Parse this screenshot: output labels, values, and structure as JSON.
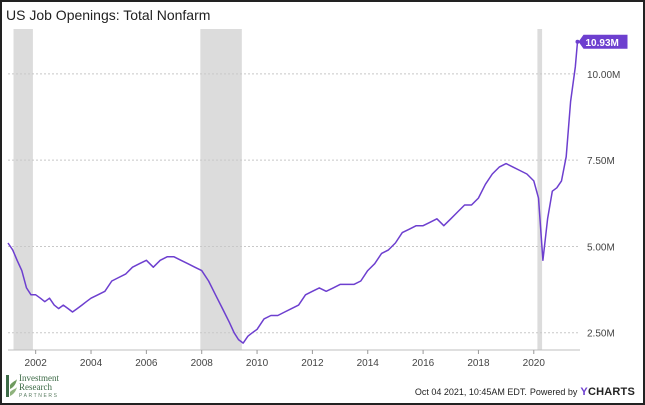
{
  "chart_data": {
    "type": "line",
    "title": "US Job Openings: Total Nonfarm",
    "xlabel": "",
    "ylabel": "",
    "x_range": [
      2001.0,
      2021.67
    ],
    "ylim": [
      2.0,
      11.3
    ],
    "x_ticks": [
      2002,
      2004,
      2006,
      2008,
      2010,
      2012,
      2014,
      2016,
      2018,
      2020
    ],
    "x_tick_labels": [
      "2002",
      "2004",
      "2006",
      "2008",
      "2010",
      "2012",
      "2014",
      "2016",
      "2018",
      "2020"
    ],
    "y_ticks": [
      2.5,
      5.0,
      7.5,
      10.0
    ],
    "y_tick_labels": [
      "2.50M",
      "5.00M",
      "7.50M",
      "10.00M"
    ],
    "grid": "horizontal dotted",
    "shaded_periods": [
      [
        2001.2,
        2001.9
      ],
      [
        2007.95,
        2009.45
      ],
      [
        2020.13,
        2020.3
      ]
    ],
    "end_label": "10.93M",
    "colors": {
      "line": "#6d3fcf",
      "recession": "#dcdcdc",
      "grid": "#c8c8c8"
    },
    "series": [
      {
        "x": [
          2001.0,
          2001.17,
          2001.33,
          2001.5,
          2001.67,
          2001.83,
          2002.0,
          2002.17,
          2002.33,
          2002.5,
          2002.67,
          2002.83,
          2003.0,
          2003.17,
          2003.33,
          2003.5,
          2003.67,
          2003.83,
          2004.0,
          2004.25,
          2004.5,
          2004.75,
          2005.0,
          2005.25,
          2005.5,
          2005.75,
          2006.0,
          2006.25,
          2006.5,
          2006.75,
          2007.0,
          2007.25,
          2007.5,
          2007.75,
          2008.0,
          2008.25,
          2008.5,
          2008.75,
          2009.0,
          2009.17,
          2009.33,
          2009.5,
          2009.67,
          2009.83,
          2010.0,
          2010.25,
          2010.5,
          2010.75,
          2011.0,
          2011.25,
          2011.5,
          2011.75,
          2012.0,
          2012.25,
          2012.5,
          2012.75,
          2013.0,
          2013.25,
          2013.5,
          2013.75,
          2014.0,
          2014.25,
          2014.5,
          2014.75,
          2015.0,
          2015.25,
          2015.5,
          2015.75,
          2016.0,
          2016.25,
          2016.5,
          2016.75,
          2017.0,
          2017.25,
          2017.5,
          2017.75,
          2018.0,
          2018.25,
          2018.5,
          2018.75,
          2019.0,
          2019.25,
          2019.5,
          2019.75,
          2020.0,
          2020.17,
          2020.33,
          2020.5,
          2020.67,
          2020.83,
          2021.0,
          2021.17,
          2021.33,
          2021.5,
          2021.58
        ],
        "values": [
          5.1,
          4.9,
          4.6,
          4.3,
          3.8,
          3.6,
          3.6,
          3.5,
          3.4,
          3.5,
          3.3,
          3.2,
          3.3,
          3.2,
          3.1,
          3.2,
          3.3,
          3.4,
          3.5,
          3.6,
          3.7,
          4.0,
          4.1,
          4.2,
          4.4,
          4.5,
          4.6,
          4.4,
          4.6,
          4.7,
          4.7,
          4.6,
          4.5,
          4.4,
          4.3,
          4.0,
          3.6,
          3.2,
          2.8,
          2.5,
          2.3,
          2.2,
          2.4,
          2.5,
          2.6,
          2.9,
          3.0,
          3.0,
          3.1,
          3.2,
          3.3,
          3.6,
          3.7,
          3.8,
          3.7,
          3.8,
          3.9,
          3.9,
          3.9,
          4.0,
          4.3,
          4.5,
          4.8,
          4.9,
          5.1,
          5.4,
          5.5,
          5.6,
          5.6,
          5.7,
          5.8,
          5.6,
          5.8,
          6.0,
          6.2,
          6.2,
          6.4,
          6.8,
          7.1,
          7.3,
          7.4,
          7.3,
          7.2,
          7.1,
          6.9,
          6.4,
          4.6,
          5.8,
          6.6,
          6.7,
          6.9,
          7.6,
          9.2,
          10.2,
          10.93
        ]
      }
    ]
  },
  "footer": {
    "timestamp": "Oct 04 2021, 10:45AM EDT.",
    "powered_by": "Powered by",
    "brand_y": "Y",
    "brand_rest": "CHARTS"
  },
  "logo": {
    "line1": "Investment",
    "line2": "Research",
    "tagline": "PARTNERS"
  }
}
